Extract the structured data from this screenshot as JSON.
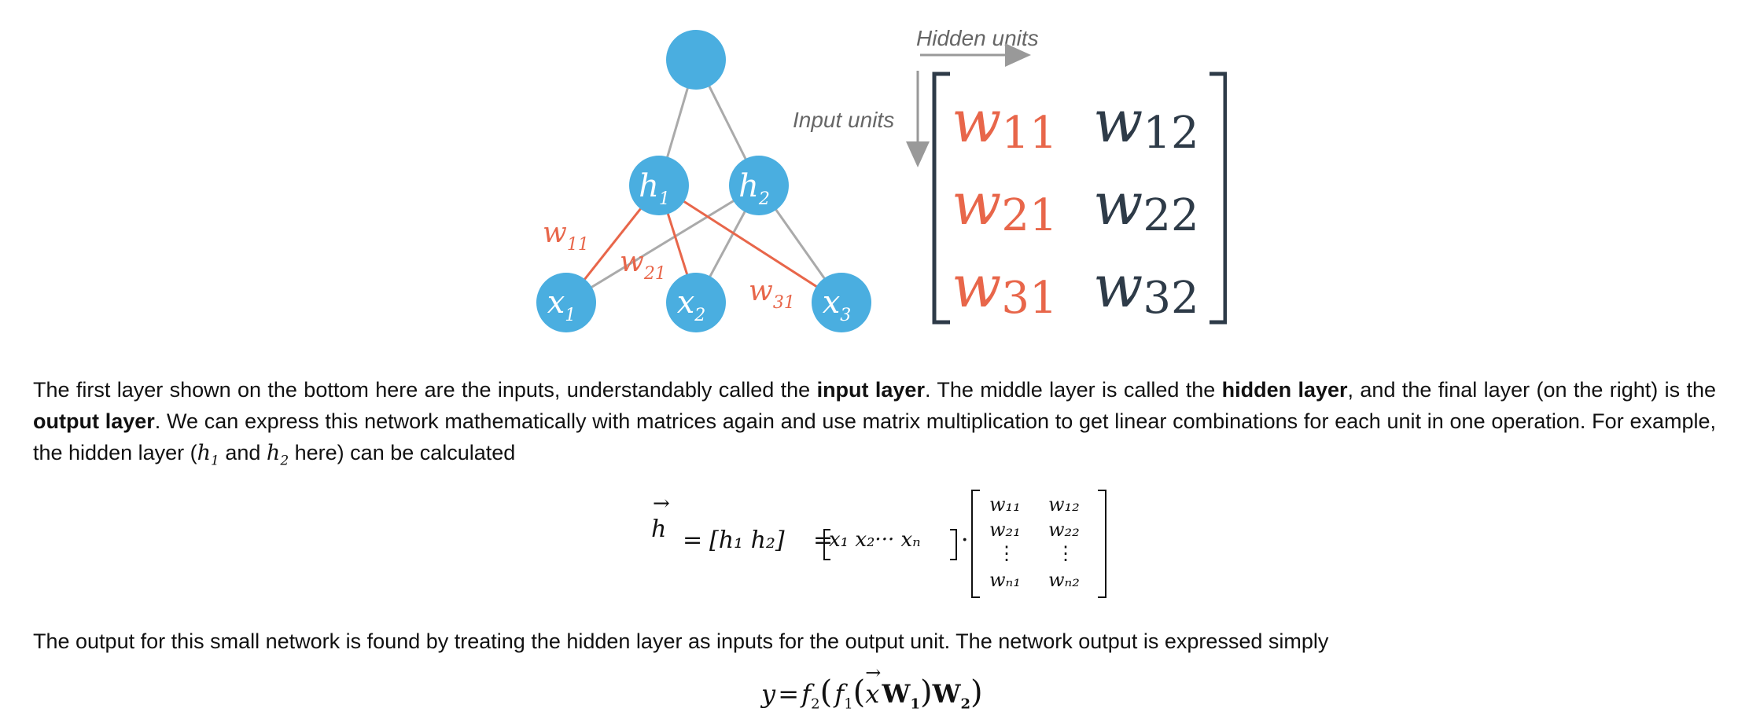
{
  "figure": {
    "hidden_units_label": "Hidden units",
    "input_units_label": "Input units",
    "colors": {
      "node": "#4aaee0",
      "red": "#e8664a",
      "gray": "#aaaaaa",
      "dark": "#2e3b48",
      "label_gray": "#666666"
    },
    "nodes": {
      "h1": {
        "base": "h",
        "sub": "1"
      },
      "h2": {
        "base": "h",
        "sub": "2"
      },
      "x1": {
        "base": "x",
        "sub": "1"
      },
      "x2": {
        "base": "x",
        "sub": "2"
      },
      "x3": {
        "base": "x",
        "sub": "3"
      }
    },
    "edge_labels": {
      "w11": {
        "base": "w",
        "sub": "11"
      },
      "w21": {
        "base": "w",
        "sub": "21"
      },
      "w31": {
        "base": "w",
        "sub": "31"
      }
    },
    "matrix": [
      [
        {
          "base": "w",
          "sub": "11"
        },
        {
          "base": "w",
          "sub": "12"
        }
      ],
      [
        {
          "base": "w",
          "sub": "21"
        },
        {
          "base": "w",
          "sub": "22"
        }
      ],
      [
        {
          "base": "w",
          "sub": "31"
        },
        {
          "base": "w",
          "sub": "32"
        }
      ]
    ]
  },
  "para1": {
    "t1": "The first layer shown on the bottom here are the inputs, understandably called the ",
    "b1": "input layer",
    "t2": ". The middle layer is called the ",
    "b2": "hidden layer",
    "t3": ", and the final layer (on the right) is the ",
    "b3": "output layer",
    "t4": ". We can express this network mathematically with matrices again and use matrix multiplication to get linear combinations for each unit in one operation. For example, the hidden layer (",
    "m1_base": "h",
    "m1_sub": "1",
    "t5": " and ",
    "m2_base": "h",
    "m2_sub": "2",
    "t6": " here) can be calculated"
  },
  "equation1": {
    "lhs": "h",
    "eq": "=",
    "row": "[h₁ h₂]",
    "x_row": "x₁ x₂··· xₙ",
    "dot": "·",
    "matrix": [
      [
        "w₁₁",
        "w₁₂"
      ],
      [
        "w₂₁",
        "w₂₂"
      ],
      [
        "⋮",
        "⋮"
      ],
      [
        "wₙ₁",
        "wₙ₂"
      ]
    ]
  },
  "para2": "The output for this small network is found by treating the hidden layer as inputs for the output unit. The network output is expressed simply",
  "equation2": {
    "y": "y",
    "eq": "=",
    "f2": "f",
    "f2_sub": "2",
    "f1": "f",
    "f1_sub": "1",
    "x": "x",
    "W1": "W",
    "W1_sub": "1",
    "W2": "W",
    "W2_sub": "2"
  }
}
